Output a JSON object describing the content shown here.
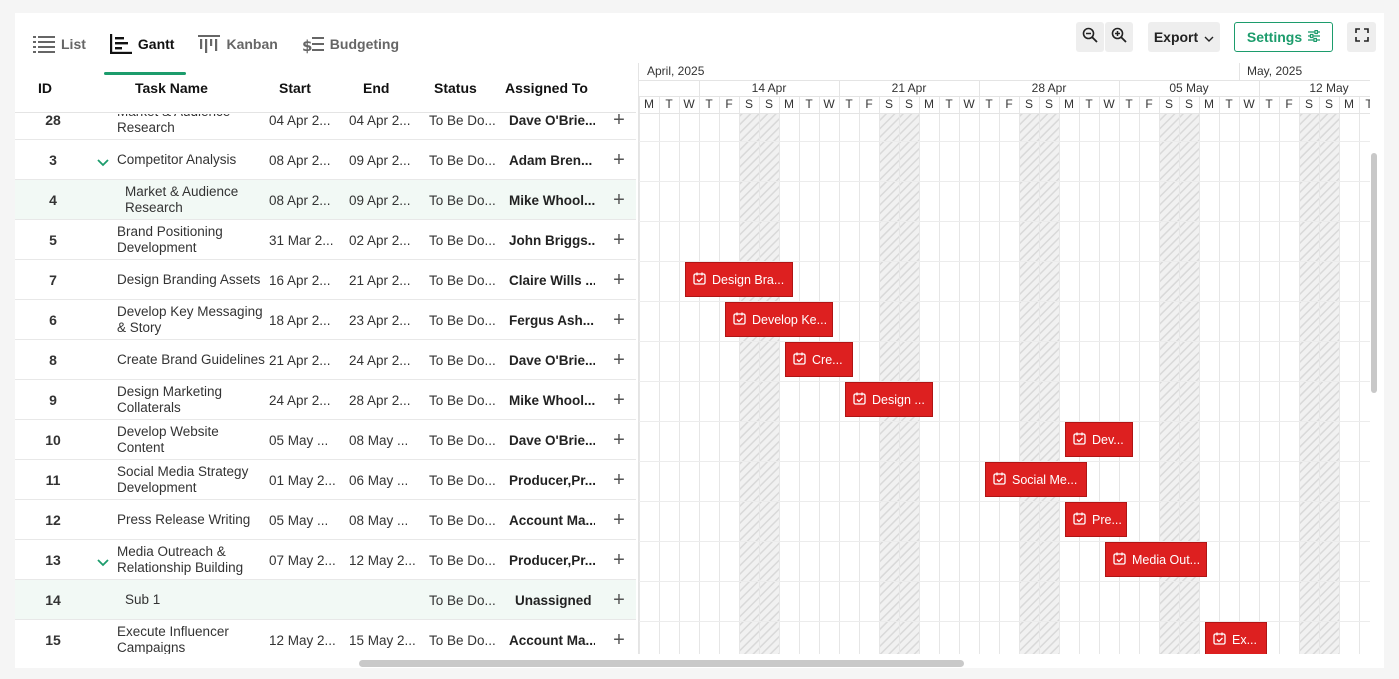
{
  "tabs": [
    {
      "label": "List",
      "icon": "list-icon",
      "active": false
    },
    {
      "label": "Gantt",
      "icon": "gantt-icon",
      "active": true
    },
    {
      "label": "Kanban",
      "icon": "kanban-icon",
      "active": false
    },
    {
      "label": "Budgeting",
      "icon": "budgeting-icon",
      "active": false
    }
  ],
  "toolbar": {
    "export_label": "Export",
    "settings_label": "Settings",
    "zoom_out_icon": "zoom-out-icon",
    "zoom_in_icon": "zoom-in-icon",
    "fullscreen_icon": "fullscreen-icon"
  },
  "columns": {
    "id": "ID",
    "name": "Task Name",
    "start": "Start",
    "end": "End",
    "status": "Status",
    "assigned": "Assigned To"
  },
  "rows": [
    {
      "id": "28",
      "name": "Market & Audience Research",
      "start": "04 Apr 2...",
      "end": "04 Apr 2...",
      "status": "To Be Do...",
      "assigned": "Dave O'Brie...",
      "indent": false,
      "chevron": false,
      "highlight": false
    },
    {
      "id": "3",
      "name": "Competitor Analysis",
      "start": "08 Apr 2...",
      "end": "09 Apr 2...",
      "status": "To Be Do...",
      "assigned": "Adam Bren...",
      "indent": false,
      "chevron": true,
      "highlight": false
    },
    {
      "id": "4",
      "name": "Market & Audience Research",
      "start": "08 Apr 2...",
      "end": "09 Apr 2...",
      "status": "To Be Do...",
      "assigned": "Mike Whool...",
      "indent": true,
      "chevron": false,
      "highlight": true
    },
    {
      "id": "5",
      "name": "Brand Positioning Development",
      "start": "31 Mar 2...",
      "end": "02 Apr 2...",
      "status": "To Be Do...",
      "assigned": "John Briggs...",
      "indent": false,
      "chevron": false,
      "highlight": false
    },
    {
      "id": "7",
      "name": "Design Branding Assets",
      "start": "16 Apr 2...",
      "end": "21 Apr 2...",
      "status": "To Be Do...",
      "assigned": "Claire Wills ...",
      "indent": false,
      "chevron": false,
      "highlight": false
    },
    {
      "id": "6",
      "name": "Develop Key Messaging & Story",
      "start": "18 Apr 2...",
      "end": "23 Apr 2...",
      "status": "To Be Do...",
      "assigned": "Fergus Ash...",
      "indent": false,
      "chevron": false,
      "highlight": false
    },
    {
      "id": "8",
      "name": "Create Brand Guidelines",
      "start": "21 Apr 2...",
      "end": "24 Apr 2...",
      "status": "To Be Do...",
      "assigned": "Dave O'Brie...",
      "indent": false,
      "chevron": false,
      "highlight": false
    },
    {
      "id": "9",
      "name": "Design Marketing Collaterals",
      "start": "24 Apr 2...",
      "end": "28 Apr 2...",
      "status": "To Be Do...",
      "assigned": "Mike Whool...",
      "indent": false,
      "chevron": false,
      "highlight": false
    },
    {
      "id": "10",
      "name": "Develop Website Content",
      "start": "05 May ...",
      "end": "08 May ...",
      "status": "To Be Do...",
      "assigned": "Dave O'Brie...",
      "indent": false,
      "chevron": false,
      "highlight": false
    },
    {
      "id": "11",
      "name": "Social Media Strategy Development",
      "start": "01 May 2...",
      "end": "06 May ...",
      "status": "To Be Do...",
      "assigned": "Producer,Pr...",
      "indent": false,
      "chevron": false,
      "highlight": false
    },
    {
      "id": "12",
      "name": "Press Release Writing",
      "start": "05 May ...",
      "end": "08 May ...",
      "status": "To Be Do...",
      "assigned": "Account Ma...",
      "indent": false,
      "chevron": false,
      "highlight": false
    },
    {
      "id": "13",
      "name": "Media Outreach & Relationship Building",
      "start": "07 May 2...",
      "end": "12 May 2...",
      "status": "To Be Do...",
      "assigned": "Producer,Pr...",
      "indent": false,
      "chevron": true,
      "highlight": false
    },
    {
      "id": "14",
      "name": "Sub 1",
      "start": "",
      "end": "",
      "status": "To Be Do...",
      "assigned": "Unassigned",
      "indent": true,
      "chevron": false,
      "highlight": true
    },
    {
      "id": "15",
      "name": "Execute Influencer Campaigns",
      "start": "12 May 2...",
      "end": "15 May 2...",
      "status": "To Be Do...",
      "assigned": "Account Ma...",
      "indent": false,
      "chevron": false,
      "highlight": false
    }
  ],
  "timeline": {
    "months": [
      {
        "label": "April, 2025",
        "start_day": 0
      },
      {
        "label": "May, 2025",
        "start_day": 30
      }
    ],
    "weeks": [
      {
        "label": "14 Apr",
        "start_day": 3
      },
      {
        "label": "21 Apr",
        "start_day": 10
      },
      {
        "label": "28 Apr",
        "start_day": 17
      },
      {
        "label": "05 May",
        "start_day": 24
      },
      {
        "label": "12 May",
        "start_day": 31
      }
    ],
    "days": [
      "M",
      "T",
      "W",
      "T",
      "F",
      "S",
      "S",
      "M",
      "T",
      "W",
      "T",
      "F",
      "S",
      "S",
      "M",
      "T",
      "W",
      "T",
      "F",
      "S",
      "S",
      "M",
      "T",
      "W",
      "T",
      "F",
      "S",
      "S",
      "M",
      "T",
      "W",
      "T",
      "F",
      "S",
      "S",
      "M",
      "T"
    ],
    "weekend_indices": [
      5,
      6,
      12,
      13,
      19,
      20,
      26,
      27,
      33,
      34
    ]
  },
  "bars": [
    {
      "row": 4,
      "label": "Design Bra...",
      "start_day": 2.3,
      "days": 5.4
    },
    {
      "row": 5,
      "label": "Develop Ke...",
      "start_day": 4.3,
      "days": 5.4
    },
    {
      "row": 6,
      "label": "Cre...",
      "start_day": 7.3,
      "days": 3.4
    },
    {
      "row": 7,
      "label": "Design ...",
      "start_day": 10.3,
      "days": 4.4
    },
    {
      "row": 8,
      "label": "Dev...",
      "start_day": 21.3,
      "days": 3.4
    },
    {
      "row": 9,
      "label": "Social Me...",
      "start_day": 17.3,
      "days": 5.1
    },
    {
      "row": 10,
      "label": "Pre...",
      "start_day": 21.3,
      "days": 3.1
    },
    {
      "row": 11,
      "label": "Media Out...",
      "start_day": 23.3,
      "days": 5.1
    },
    {
      "row": 13,
      "label": "Ex...",
      "start_day": 28.3,
      "days": 3.1
    }
  ],
  "colors": {
    "accent": "#1c9c6c",
    "bar": "#dd2020",
    "weekend": "#d9d9d9"
  }
}
